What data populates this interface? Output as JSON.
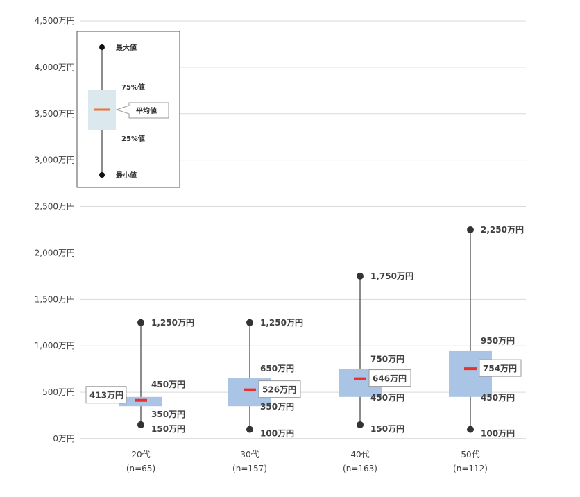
{
  "chart_data": {
    "type": "boxplot",
    "y_unit": "万円",
    "ylim": [
      0,
      4500
    ],
    "y_ticks": [
      "0万円",
      "500万円",
      "1,000万円",
      "1,500万円",
      "2,000万円",
      "2,500万円",
      "3,000万円",
      "3,500万円",
      "4,000万円",
      "4,500万円"
    ],
    "grid": true,
    "series": [
      {
        "category": "20代",
        "n_label": "(n=65)",
        "min": 150,
        "q1": 350,
        "mean": 413,
        "q3": 450,
        "max": 1250,
        "labels": {
          "min": "150万円",
          "q1": "350万円",
          "mean": "413万円",
          "q3": "450万円",
          "max": "1,250万円"
        }
      },
      {
        "category": "30代",
        "n_label": "(n=157)",
        "min": 100,
        "q1": 350,
        "mean": 526,
        "q3": 650,
        "max": 1250,
        "labels": {
          "min": "100万円",
          "q1": "350万円",
          "mean": "526万円",
          "q3": "650万円",
          "max": "1,250万円"
        }
      },
      {
        "category": "40代",
        "n_label": "(n=163)",
        "min": 150,
        "q1": 450,
        "mean": 646,
        "q3": 750,
        "max": 1750,
        "labels": {
          "min": "150万円",
          "q1": "450万円",
          "mean": "646万円",
          "q3": "750万円",
          "max": "1,750万円"
        }
      },
      {
        "category": "50代",
        "n_label": "(n=112)",
        "min": 100,
        "q1": 450,
        "mean": 754,
        "q3": 950,
        "max": 2250,
        "labels": {
          "min": "100万円",
          "q1": "450万円",
          "mean": "754万円",
          "q3": "950万円",
          "max": "2,250万円"
        }
      }
    ],
    "legend": {
      "position": "top-left",
      "max_label": "最大値",
      "q3_label": "75%値",
      "mean_label": "平均値",
      "q1_label": "25%値",
      "min_label": "最小値"
    }
  },
  "colors": {
    "box": "#a9c4e4",
    "mean": "#e8312a",
    "whisker": "#404040",
    "grid": "#d9d9d9",
    "legend_box": "#dbe9ee",
    "legend_mean": "#f07030"
  }
}
